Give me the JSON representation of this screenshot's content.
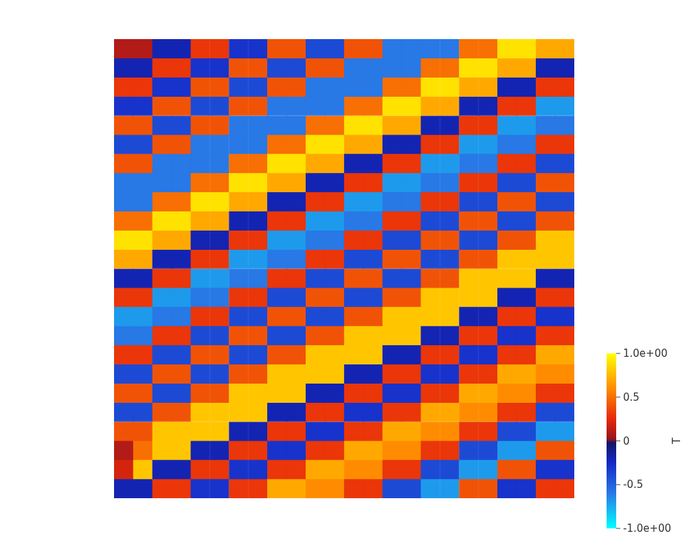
{
  "chart_data": {
    "type": "heatmap",
    "tick_labels": false,
    "colorbar_title": "T",
    "colorbar_range": [
      -1,
      1
    ],
    "colorbar_ticks": [
      {
        "value": 1,
        "label": "1.0e+00"
      },
      0.5,
      0,
      -0.5,
      {
        "value": -1,
        "label": "-1.0e+00"
      }
    ],
    "cells": [
      [
        0.1,
        0.1,
        -0.2,
        -0.2,
        0.3,
        0.3,
        -0.3,
        -0.3,
        0.4,
        0.4,
        -0.4,
        -0.4,
        0.4,
        0.4,
        -0.6,
        -0.6,
        -0.6,
        -0.6,
        0.5,
        0.5,
        0.9,
        0.9,
        0.7,
        0.7
      ],
      [
        -0.2,
        -0.2,
        0.3,
        0.3,
        -0.3,
        -0.3,
        0.4,
        0.4,
        -0.4,
        -0.4,
        0.4,
        0.4,
        -0.6,
        -0.6,
        -0.6,
        -0.6,
        0.5,
        0.5,
        0.9,
        0.9,
        0.7,
        0.7,
        -0.2,
        -0.2
      ],
      [
        0.3,
        0.3,
        -0.3,
        -0.3,
        0.4,
        0.4,
        -0.4,
        -0.4,
        0.4,
        0.4,
        -0.6,
        -0.6,
        -0.6,
        -0.6,
        0.5,
        0.5,
        0.9,
        0.9,
        0.7,
        0.7,
        -0.2,
        -0.2,
        0.3,
        0.3
      ],
      [
        -0.3,
        -0.3,
        0.4,
        0.4,
        -0.4,
        -0.4,
        0.4,
        0.4,
        -0.6,
        -0.6,
        -0.6,
        -0.6,
        0.5,
        0.5,
        0.9,
        0.9,
        0.7,
        0.7,
        -0.2,
        -0.2,
        0.3,
        0.3,
        -0.7,
        -0.7
      ],
      [
        0.4,
        0.4,
        -0.4,
        -0.4,
        0.4,
        0.4,
        -0.6,
        -0.6,
        -0.6,
        -0.6,
        0.5,
        0.5,
        0.9,
        0.9,
        0.7,
        0.7,
        -0.2,
        -0.2,
        0.3,
        0.3,
        -0.7,
        -0.7,
        -0.6,
        -0.6
      ],
      [
        -0.4,
        -0.4,
        0.4,
        0.4,
        -0.6,
        -0.6,
        -0.6,
        -0.6,
        0.5,
        0.5,
        0.9,
        0.9,
        0.7,
        0.7,
        -0.2,
        -0.2,
        0.3,
        0.3,
        -0.7,
        -0.7,
        -0.6,
        -0.6,
        0.3,
        0.3
      ],
      [
        0.4,
        0.4,
        -0.6,
        -0.6,
        -0.6,
        -0.6,
        0.5,
        0.5,
        0.9,
        0.9,
        0.7,
        0.7,
        -0.2,
        -0.2,
        0.3,
        0.3,
        -0.7,
        -0.7,
        -0.6,
        -0.6,
        0.3,
        0.3,
        -0.4,
        -0.4
      ],
      [
        -0.6,
        -0.6,
        -0.6,
        -0.6,
        0.5,
        0.5,
        0.9,
        0.9,
        0.7,
        0.7,
        -0.2,
        -0.2,
        0.3,
        0.3,
        -0.7,
        -0.7,
        -0.6,
        -0.6,
        0.3,
        0.3,
        -0.4,
        -0.4,
        0.4,
        0.4
      ],
      [
        -0.6,
        -0.6,
        0.5,
        0.5,
        0.9,
        0.9,
        0.7,
        0.7,
        -0.2,
        -0.2,
        0.3,
        0.3,
        -0.7,
        -0.7,
        -0.6,
        -0.6,
        0.3,
        0.3,
        -0.4,
        -0.4,
        0.4,
        0.4,
        -0.4,
        -0.4
      ],
      [
        0.5,
        0.5,
        0.9,
        0.9,
        0.7,
        0.7,
        -0.2,
        -0.2,
        0.3,
        0.3,
        -0.7,
        -0.7,
        -0.6,
        -0.6,
        0.3,
        0.3,
        -0.4,
        -0.4,
        0.4,
        0.4,
        -0.4,
        -0.4,
        0.4,
        0.4
      ],
      [
        0.9,
        0.9,
        0.7,
        0.7,
        -0.2,
        -0.2,
        0.3,
        0.3,
        -0.7,
        -0.7,
        -0.6,
        -0.6,
        0.3,
        0.3,
        -0.4,
        -0.4,
        0.4,
        0.4,
        -0.4,
        -0.4,
        0.4,
        0.4,
        0.8,
        0.8
      ],
      [
        0.7,
        0.7,
        -0.2,
        -0.2,
        0.3,
        0.3,
        -0.7,
        -0.7,
        -0.6,
        -0.6,
        0.3,
        0.3,
        -0.4,
        -0.4,
        0.4,
        0.4,
        -0.4,
        -0.4,
        0.4,
        0.4,
        0.8,
        0.8,
        0.8,
        0.8
      ],
      [
        -0.2,
        -0.2,
        0.3,
        0.3,
        -0.7,
        -0.7,
        -0.6,
        -0.6,
        0.3,
        0.3,
        -0.4,
        -0.4,
        0.4,
        0.4,
        -0.4,
        -0.4,
        0.4,
        0.4,
        0.8,
        0.8,
        0.8,
        0.8,
        -0.2,
        -0.2
      ],
      [
        0.3,
        0.3,
        -0.7,
        -0.7,
        -0.6,
        -0.6,
        0.3,
        0.3,
        -0.4,
        -0.4,
        0.4,
        0.4,
        -0.4,
        -0.4,
        0.4,
        0.4,
        0.8,
        0.8,
        0.8,
        0.8,
        -0.2,
        -0.2,
        0.3,
        0.3
      ],
      [
        -0.7,
        -0.7,
        -0.6,
        -0.6,
        0.3,
        0.3,
        -0.4,
        -0.4,
        0.4,
        0.4,
        -0.4,
        -0.4,
        0.4,
        0.4,
        0.8,
        0.8,
        0.8,
        0.8,
        -0.2,
        -0.2,
        0.3,
        0.3,
        -0.3,
        -0.3
      ],
      [
        -0.6,
        -0.6,
        0.3,
        0.3,
        -0.4,
        -0.4,
        0.4,
        0.4,
        -0.4,
        -0.4,
        0.4,
        0.4,
        0.8,
        0.8,
        0.8,
        0.8,
        -0.2,
        -0.2,
        0.3,
        0.3,
        -0.3,
        -0.3,
        0.3,
        0.3
      ],
      [
        0.3,
        0.3,
        -0.4,
        -0.4,
        0.4,
        0.4,
        -0.4,
        -0.4,
        0.4,
        0.4,
        0.8,
        0.8,
        0.8,
        0.8,
        -0.2,
        -0.2,
        0.3,
        0.3,
        -0.3,
        -0.3,
        0.3,
        0.3,
        0.7,
        0.7
      ],
      [
        -0.4,
        -0.4,
        0.4,
        0.4,
        -0.4,
        -0.4,
        0.4,
        0.4,
        0.8,
        0.8,
        0.8,
        0.8,
        -0.2,
        -0.2,
        0.3,
        0.3,
        -0.3,
        -0.3,
        0.3,
        0.3,
        0.7,
        0.7,
        0.6,
        0.6
      ],
      [
        0.4,
        0.4,
        -0.4,
        -0.4,
        0.4,
        0.4,
        0.8,
        0.8,
        0.8,
        0.8,
        -0.2,
        -0.2,
        0.3,
        0.3,
        -0.3,
        -0.3,
        0.3,
        0.3,
        0.7,
        0.7,
        0.6,
        0.6,
        0.3,
        0.3
      ],
      [
        -0.4,
        -0.4,
        0.4,
        0.4,
        0.8,
        0.8,
        0.8,
        0.8,
        -0.2,
        -0.2,
        0.3,
        0.3,
        -0.3,
        -0.3,
        0.3,
        0.3,
        0.7,
        0.7,
        0.6,
        0.6,
        0.3,
        0.3,
        -0.4,
        -0.4
      ],
      [
        0.4,
        0.4,
        0.8,
        0.8,
        0.8,
        0.8,
        -0.2,
        -0.2,
        0.3,
        0.3,
        -0.3,
        -0.3,
        0.3,
        0.3,
        0.7,
        0.7,
        0.6,
        0.6,
        0.3,
        0.3,
        -0.4,
        -0.4,
        -0.7,
        -0.7
      ],
      [
        0.1,
        0.5,
        0.8,
        0.8,
        -0.2,
        -0.2,
        0.3,
        0.3,
        -0.3,
        -0.3,
        0.3,
        0.3,
        0.7,
        0.7,
        0.6,
        0.6,
        0.3,
        0.3,
        -0.4,
        -0.4,
        -0.7,
        -0.7,
        0.4,
        0.4
      ],
      [
        0.2,
        0.8,
        -0.2,
        -0.2,
        0.3,
        0.3,
        -0.3,
        -0.3,
        0.3,
        0.3,
        0.7,
        0.7,
        0.6,
        0.6,
        0.3,
        0.3,
        -0.4,
        -0.4,
        -0.7,
        -0.7,
        0.4,
        0.4,
        -0.3,
        -0.3
      ],
      [
        -0.2,
        -0.2,
        0.3,
        0.3,
        -0.3,
        -0.3,
        0.3,
        0.3,
        0.7,
        0.7,
        0.6,
        0.6,
        0.3,
        0.3,
        -0.4,
        -0.4,
        -0.7,
        -0.7,
        0.4,
        0.4,
        -0.3,
        -0.3,
        0.3,
        0.3
      ]
    ]
  }
}
